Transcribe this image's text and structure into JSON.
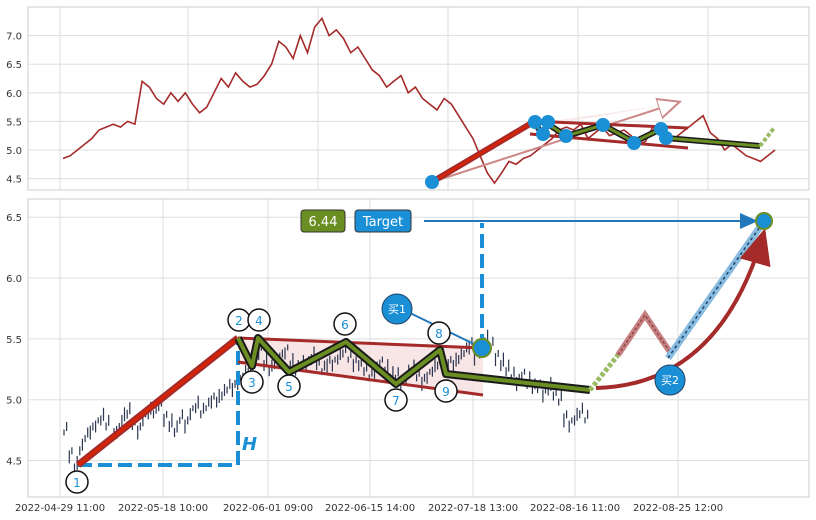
{
  "chart_data": [
    {
      "type": "line",
      "panel": "overview",
      "ylim": [
        4.3,
        7.5
      ],
      "yticks": [
        "4.5",
        "5.0",
        "5.5",
        "6.0",
        "6.5",
        "7.0"
      ],
      "line_color": "#a52a2a",
      "grid": true,
      "series": [
        {
          "values": [
            4.85,
            4.9,
            5.0,
            5.1,
            5.2,
            5.35,
            5.4,
            5.45,
            5.4,
            5.5,
            5.45,
            6.2,
            6.1,
            5.9,
            5.8,
            6.0,
            5.85,
            6.0,
            5.8,
            5.65,
            5.75,
            6.0,
            6.25,
            6.1,
            6.35,
            6.2,
            6.1,
            6.15,
            6.3,
            6.5,
            6.9,
            6.8,
            6.6,
            7.0,
            6.7,
            7.15,
            7.3,
            7.0,
            7.1,
            6.95,
            6.7,
            6.8,
            6.6,
            6.4,
            6.3,
            6.1,
            6.2,
            6.3,
            6.0,
            6.1,
            5.9,
            5.8,
            5.7,
            5.9,
            5.8,
            5.6,
            5.4,
            5.2,
            4.9,
            4.6,
            4.42,
            4.6,
            4.8,
            4.75,
            4.85,
            4.9,
            5.0,
            5.1,
            5.2,
            5.35,
            5.4,
            5.35,
            5.45,
            5.2,
            5.3,
            5.4,
            5.25,
            5.3,
            5.35,
            5.25,
            5.1,
            5.15,
            5.4,
            5.3,
            5.1,
            5.2,
            5.3,
            5.4,
            5.5,
            5.6,
            5.3,
            5.2,
            5.0,
            5.1,
            5.0,
            4.9,
            4.85,
            4.8,
            4.9,
            5.0
          ]
        }
      ]
    },
    {
      "type": "candlestick",
      "panel": "detail",
      "ylim": [
        4.2,
        6.65
      ],
      "yticks": [
        "4.5",
        "5.0",
        "5.5",
        "6.0",
        "6.5"
      ],
      "xticks": [
        "2022-04-29 11:00",
        "2022-05-18 10:00",
        "2022-06-01 09:00",
        "2022-06-15 14:00",
        "2022-07-18 13:00",
        "2022-08-16 11:00",
        "2022-08-25 12:00"
      ],
      "grid": true,
      "series": [
        {
          "values": [
            4.75,
            4.55,
            4.45,
            4.6,
            4.7,
            4.75,
            4.8,
            4.85,
            4.8,
            4.7,
            4.75,
            4.85,
            4.9,
            4.8,
            4.75,
            4.85,
            4.9,
            4.9,
            4.95,
            4.85,
            4.8,
            4.75,
            4.85,
            4.8,
            4.9,
            4.95,
            4.9,
            4.95,
            5.0,
            5.0,
            5.05,
            5.1,
            5.1,
            5.15,
            5.2,
            5.25,
            5.35,
            5.4,
            5.3,
            5.25,
            5.3,
            5.35,
            5.4,
            5.3,
            5.25,
            5.3,
            5.3,
            5.35,
            5.3,
            5.25,
            5.3,
            5.3,
            5.35,
            5.4,
            5.35,
            5.3,
            5.3,
            5.25,
            5.2,
            5.25,
            5.3,
            5.25,
            5.2,
            5.2,
            5.15,
            5.2,
            5.25,
            5.2,
            5.15,
            5.2,
            5.25,
            5.3,
            5.25,
            5.3,
            5.3,
            5.35,
            5.4,
            5.45,
            5.35,
            5.4,
            5.5,
            5.45,
            5.35,
            5.3,
            5.25,
            5.2,
            5.15,
            5.2,
            5.15,
            5.1,
            5.1,
            5.05,
            5.1,
            5.05,
            5.0,
            4.85,
            4.8,
            4.85,
            4.9,
            4.85
          ]
        }
      ],
      "annotations": {
        "price_badge": "6.44",
        "target_badge": "Target",
        "buy1": "买1",
        "buy2": "买2",
        "h_label": "H",
        "points": [
          "1",
          "2",
          "3",
          "4",
          "5",
          "6",
          "7",
          "8",
          "9"
        ]
      }
    }
  ]
}
